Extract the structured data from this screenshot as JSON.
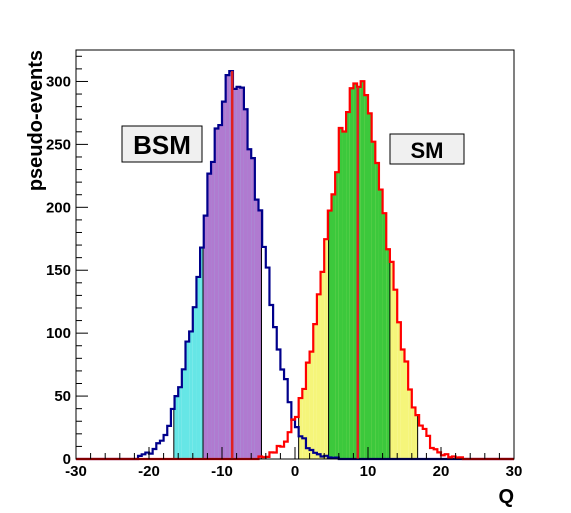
{
  "chart_data": {
    "type": "histogram",
    "title": "",
    "xlabel": "Q",
    "ylabel": "pseudo-events",
    "xlim": [
      -30,
      30
    ],
    "ylim": [
      0,
      325
    ],
    "x_ticks": [
      -30,
      -20,
      -10,
      0,
      10,
      20,
      30
    ],
    "y_ticks": [
      0,
      50,
      100,
      150,
      200,
      250,
      300
    ],
    "grid": false,
    "annotations": [
      {
        "text": "BSM",
        "box_fill": "#f0f0f0"
      },
      {
        "text": "SM",
        "box_fill": "#f0f0f0"
      }
    ],
    "series": [
      {
        "label_ref": "BSM",
        "line_color": "#00008b",
        "mean": -8.5,
        "sigma": 4.0,
        "peak": 300,
        "bin_width": 0.5,
        "median_line": -8.6,
        "outer_band": [
          -16.6,
          -4.6
        ],
        "inner_band": [
          -12.6,
          -4.6
        ],
        "outer_band_color": "#66e6e6",
        "inner_band_color": "#b07ad0"
      },
      {
        "label_ref": "SM",
        "line_color": "#ff0000",
        "mean": 8.5,
        "sigma": 4.0,
        "peak": 300,
        "bin_width": 0.5,
        "median_line": 8.6,
        "outer_band": [
          0.5,
          16.8
        ],
        "inner_band": [
          4.6,
          13.0
        ],
        "outer_band_color": "#f5f57a",
        "inner_band_color": "#3cc83c"
      }
    ],
    "median_line_color": "#e02020"
  }
}
